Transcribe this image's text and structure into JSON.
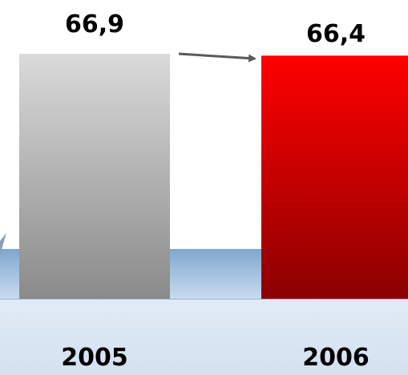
{
  "chart_data": {
    "type": "bar",
    "categories": [
      "2005",
      "2006"
    ],
    "values": [
      66.9,
      66.4
    ],
    "value_labels": [
      "66,9",
      "66,4"
    ],
    "bar_colors": [
      {
        "top": "#dadada",
        "bottom": "#8a8a8a"
      },
      {
        "top": "#ff0000",
        "bottom": "#8b0000"
      }
    ],
    "arrow_color": "#5a5a5a",
    "band_color": "#9fbedd",
    "title": "",
    "xlabel": "",
    "ylabel": ""
  }
}
